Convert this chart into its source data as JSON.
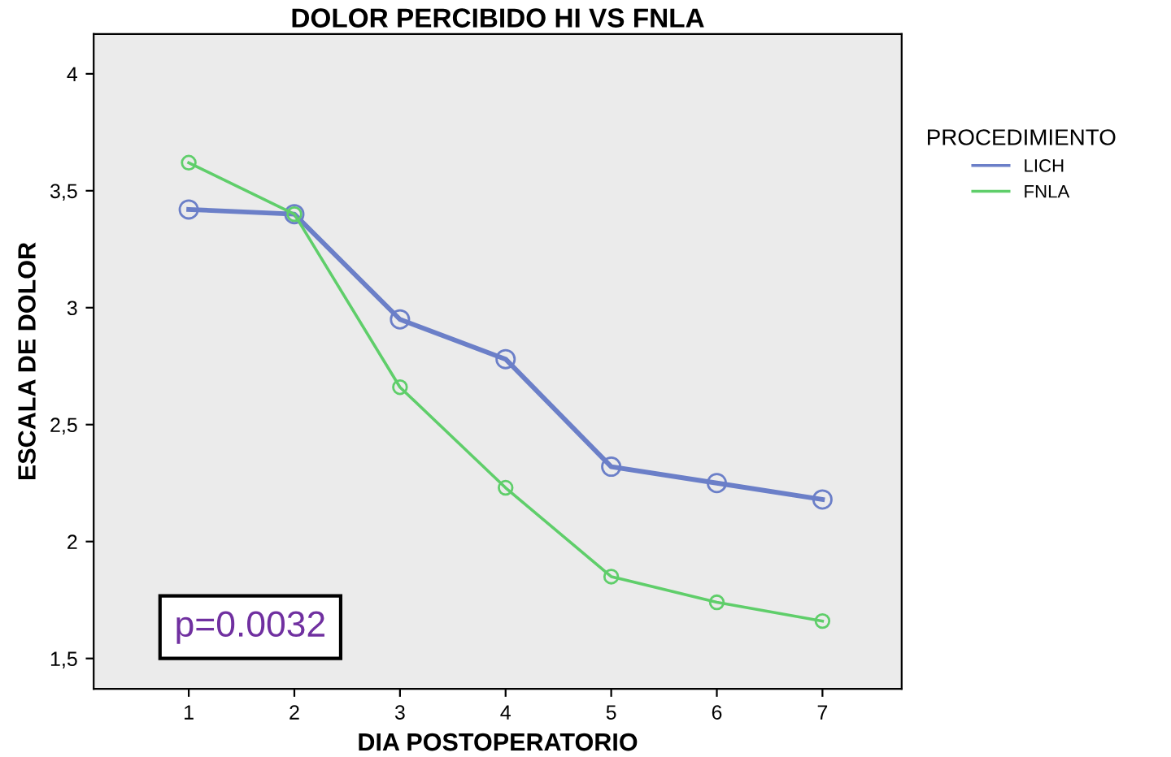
{
  "chart_data": {
    "type": "line",
    "title": "DOLOR PERCIBIDO HI VS FNLA",
    "xlabel": "DIA POSTOPERATORIO",
    "ylabel": "ESCALA DE DOLOR",
    "legend_title": "PROCEDIMIENTO",
    "x": [
      1,
      2,
      3,
      4,
      5,
      6,
      7
    ],
    "series": [
      {
        "name": "LICH",
        "color": "#6b7fc8",
        "values": [
          3.42,
          3.4,
          2.95,
          2.78,
          2.32,
          2.25,
          2.18
        ]
      },
      {
        "name": "FNLA",
        "color": "#5fce6a",
        "values": [
          3.62,
          3.4,
          2.66,
          2.23,
          1.85,
          1.74,
          1.66
        ]
      }
    ],
    "xlim": [
      0.1,
      7.75
    ],
    "xticks": [
      1,
      2,
      3,
      4,
      5,
      6,
      7
    ],
    "ylim": [
      1.37,
      4.17
    ],
    "yticks": [
      {
        "value": 1.5,
        "label": "1,5"
      },
      2,
      {
        "value": 2.5,
        "label": "2,5"
      },
      3,
      {
        "value": 3.5,
        "label": "3,5"
      },
      4
    ],
    "annotations": [
      "p=0.0032"
    ],
    "legend": "right",
    "grid": false,
    "marker": "circle",
    "line_style": "solid"
  }
}
